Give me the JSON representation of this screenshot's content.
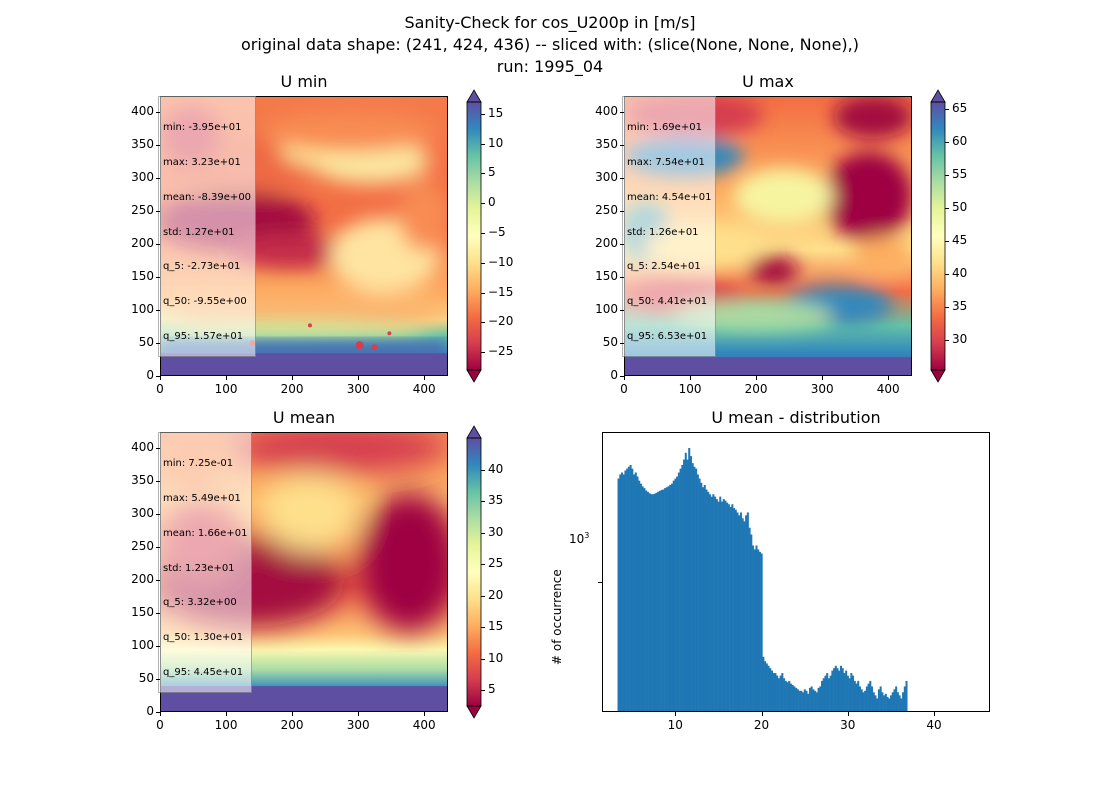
{
  "figure": {
    "title_line1": "Sanity-Check for cos_U200p in [m/s]",
    "title_line2": "original data shape: (241, 424, 436) -- sliced with: (slice(None, None, None),)",
    "title_line3": "run: 1995_04"
  },
  "panels": {
    "umin": {
      "title": "U min",
      "stats": [
        "min: -3.95e+01",
        "max: 3.23e+01",
        "mean: -8.39e+00",
        "std: 1.27e+01",
        "q_5: -2.73e+01",
        "q_50: -9.55e+00",
        "q_95: 1.57e+01"
      ],
      "colorbar_ticks": [
        15,
        10,
        5,
        0,
        -5,
        -10,
        -15,
        -20,
        -25
      ],
      "colorbar_ticklabels": [
        "15",
        "10",
        "5",
        "0",
        "−5",
        "−10",
        "−15",
        "−20",
        "−25"
      ],
      "colorbar_range": [
        -28,
        17
      ]
    },
    "umax": {
      "title": "U max",
      "stats": [
        "min: 1.69e+01",
        "max: 7.54e+01",
        "mean: 4.54e+01",
        "std: 1.26e+01",
        "q_5: 2.54e+01",
        "q_50: 4.41e+01",
        "q_95: 6.53e+01"
      ],
      "colorbar_ticks": [
        65,
        60,
        55,
        50,
        45,
        40,
        35,
        30
      ],
      "colorbar_ticklabels": [
        "65",
        "60",
        "55",
        "50",
        "45",
        "40",
        "35",
        "30"
      ],
      "colorbar_range": [
        25.5,
        66
      ]
    },
    "umean": {
      "title": "U mean",
      "stats": [
        "min: 7.25e-01",
        "max: 5.49e+01",
        "mean: 1.66e+01",
        "std: 1.23e+01",
        "q_5: 3.32e+00",
        "q_50: 1.30e+01",
        "q_95: 4.45e+01"
      ],
      "colorbar_ticks": [
        40,
        35,
        30,
        25,
        20,
        15,
        10,
        5
      ],
      "colorbar_ticklabels": [
        "40",
        "35",
        "30",
        "25",
        "20",
        "15",
        "10",
        "5"
      ],
      "colorbar_range": [
        2.5,
        45
      ]
    },
    "dist": {
      "title": "U mean - distribution",
      "ylabel": "# of occurrence",
      "ytick_label": "10",
      "ytick_exp": "3",
      "xticks": [
        "10",
        "20",
        "30",
        "40"
      ]
    }
  },
  "axes": {
    "heat_xticks": [
      "0",
      "100",
      "200",
      "300",
      "400"
    ],
    "heat_yticks": [
      "400",
      "350",
      "300",
      "250",
      "200",
      "150",
      "100",
      "50",
      "0"
    ]
  },
  "chart_data": [
    {
      "type": "heatmap",
      "title": "U min",
      "x_range": [
        0,
        436
      ],
      "y_range": [
        0,
        424
      ],
      "colormap": "Spectral",
      "vmin": -28,
      "vmax": 17
    },
    {
      "type": "heatmap",
      "title": "U max",
      "x_range": [
        0,
        436
      ],
      "y_range": [
        0,
        424
      ],
      "colormap": "Spectral",
      "vmin": 25.5,
      "vmax": 66
    },
    {
      "type": "heatmap",
      "title": "U mean",
      "x_range": [
        0,
        436
      ],
      "y_range": [
        0,
        424
      ],
      "colormap": "Spectral",
      "vmin": 2.5,
      "vmax": 45
    },
    {
      "type": "bar",
      "title": "U mean - distribution",
      "ylabel": "# of occurrence",
      "yscale": "log",
      "xlim": [
        1.5,
        46.5
      ],
      "ylim": [
        300,
        4000
      ],
      "bin_start": 3.3,
      "bin_width": 0.2,
      "color": "#1f77b4",
      "values": [
        2600,
        2700,
        2750,
        2700,
        2800,
        2850,
        2900,
        2950,
        2850,
        2700,
        2750,
        2650,
        2550,
        2480,
        2420,
        2380,
        2330,
        2300,
        2270,
        2250,
        2250,
        2260,
        2280,
        2300,
        2320,
        2340,
        2350,
        2380,
        2400,
        2420,
        2450,
        2480,
        2550,
        2600,
        2650,
        2750,
        2850,
        2950,
        3100,
        3300,
        3100,
        3450,
        3200,
        3000,
        2900,
        2850,
        2700,
        2600,
        2500,
        2400,
        2450,
        2350,
        2300,
        2250,
        2200,
        2250,
        2200,
        2150,
        2100,
        2200,
        2100,
        2150,
        2120,
        2080,
        2050,
        2000,
        2050,
        1980,
        1950,
        1900,
        1850,
        1900,
        1800,
        1750,
        1850,
        1900,
        1650,
        1550,
        1400,
        1350,
        1400,
        1350,
        1320,
        1300,
        500,
        480,
        470,
        460,
        450,
        440,
        430,
        430,
        420,
        410,
        420,
        430,
        410,
        400,
        395,
        400,
        390,
        385,
        380,
        375,
        370,
        365,
        365,
        360,
        370,
        365,
        355,
        375,
        380,
        370,
        365,
        360,
        375,
        380,
        400,
        410,
        420,
        430,
        410,
        420,
        440,
        450,
        460,
        450,
        440,
        460,
        450,
        430,
        440,
        420,
        410,
        430,
        420,
        400,
        390,
        400,
        380,
        370,
        360,
        365,
        380,
        390,
        400,
        380,
        360,
        350,
        340,
        370,
        380,
        360,
        350,
        355,
        345,
        340,
        350,
        360,
        370,
        380,
        360,
        350,
        340,
        360,
        380,
        400
      ]
    }
  ]
}
